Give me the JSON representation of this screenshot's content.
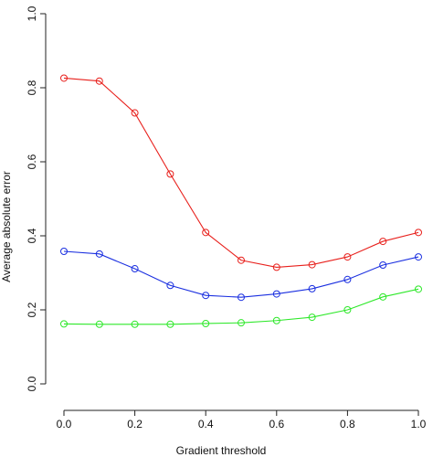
{
  "chart_data": {
    "type": "line",
    "title": "",
    "xlabel": "Gradient threshold",
    "ylabel": "Average absolute error",
    "x": [
      0.0,
      0.1,
      0.2,
      0.3,
      0.4,
      0.5,
      0.6,
      0.7,
      0.8,
      0.9,
      1.0
    ],
    "xlim": [
      0.0,
      1.0
    ],
    "ylim": [
      0.0,
      1.0
    ],
    "x_ticks": [
      "0.0",
      "0.2",
      "0.4",
      "0.6",
      "0.8",
      "1.0"
    ],
    "y_ticks": [
      "0.0",
      "0.2",
      "0.4",
      "0.6",
      "0.8",
      "1.0"
    ],
    "grid": false,
    "legend": "none",
    "series": [
      {
        "color": "#e8201c",
        "marker": "circle",
        "values": [
          0.826,
          0.818,
          0.732,
          0.567,
          0.409,
          0.334,
          0.315,
          0.322,
          0.343,
          0.385,
          0.409
        ]
      },
      {
        "color": "#1a2fe0",
        "marker": "circle",
        "values": [
          0.358,
          0.351,
          0.311,
          0.266,
          0.239,
          0.234,
          0.243,
          0.257,
          0.282,
          0.321,
          0.343
        ]
      },
      {
        "color": "#2ee82a",
        "marker": "circle",
        "values": [
          0.162,
          0.161,
          0.161,
          0.161,
          0.163,
          0.165,
          0.171,
          0.18,
          0.2,
          0.235,
          0.256
        ]
      }
    ]
  }
}
